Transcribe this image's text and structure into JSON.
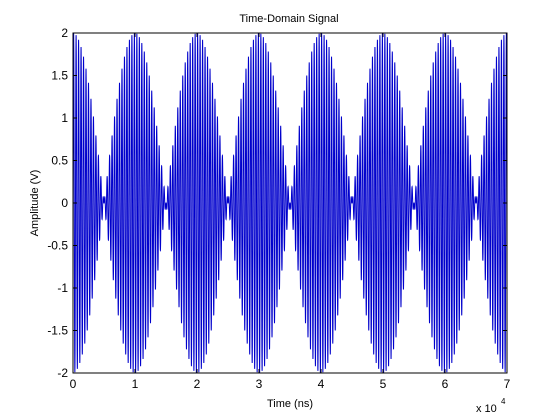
{
  "chart_data": {
    "type": "line",
    "title": "Time-Domain Signal",
    "xlabel": "Time (ns)",
    "ylabel": "Amplitude (V)",
    "x_exponent_label": "x 10",
    "x_exponent": "4",
    "xlim": [
      0,
      70000
    ],
    "ylim": [
      -2,
      2
    ],
    "xticks": [
      0,
      10000,
      20000,
      30000,
      40000,
      50000,
      60000,
      70000
    ],
    "xtick_labels": [
      "0",
      "1",
      "2",
      "3",
      "4",
      "5",
      "6",
      "7"
    ],
    "yticks": [
      -2,
      -1.5,
      -1,
      -0.5,
      0,
      0.5,
      1,
      1.5,
      2
    ],
    "ytick_labels": [
      "-2",
      "-1.5",
      "-1",
      "-0.5",
      "0",
      "0.5",
      "1",
      "1.5",
      "2"
    ],
    "grid": false,
    "series": [
      {
        "color": "#0000cc",
        "function": "2*cos(2*pi*f_mod*t)*sin(2*pi*f_carrier*t)",
        "f_carrier_cycles_per_ns": 0.0025,
        "envelope_period_ns": 20000,
        "envelope_amplitude": 2,
        "t_start": 0,
        "t_end": 70000
      }
    ]
  }
}
